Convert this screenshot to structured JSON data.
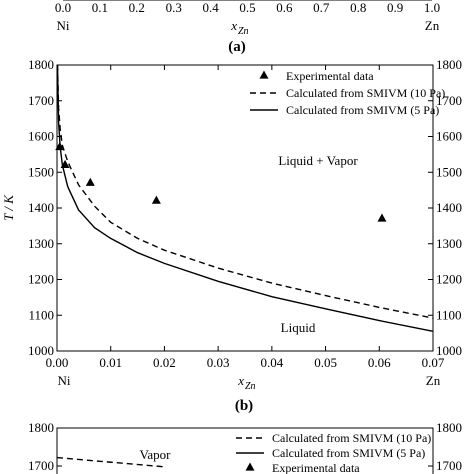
{
  "top_fragment": {
    "x_ticks": [
      "0.0",
      "0.1",
      "0.2",
      "0.3",
      "0.4",
      "0.5",
      "0.6",
      "0.7",
      "0.8",
      "0.9",
      "1.0"
    ],
    "left_end": "Ni",
    "axis_label": "x",
    "axis_label_sub": "Zn",
    "right_end": "Zn",
    "panel_label": "(a)"
  },
  "chart_data": [
    {
      "type": "line",
      "panel_label": "(b)",
      "xlabel": "x",
      "xlabel_sub": "Zn",
      "ylabel": "T / K",
      "xlim": [
        0.0,
        0.07
      ],
      "ylim": [
        1000,
        1800
      ],
      "x_ticks": [
        0.0,
        0.01,
        0.02,
        0.03,
        0.04,
        0.05,
        0.06,
        0.07
      ],
      "x_tick_labels": [
        "0.00",
        "0.01",
        "0.02",
        "0.03",
        "0.04",
        "0.05",
        "0.06",
        "0.07"
      ],
      "y_ticks": [
        1000,
        1100,
        1200,
        1300,
        1400,
        1500,
        1600,
        1700,
        1800
      ],
      "y_tick_labels": [
        "1000",
        "1100",
        "1200",
        "1300",
        "1400",
        "1500",
        "1600",
        "1700",
        "1800"
      ],
      "x_end_left": "Ni",
      "x_end_right": "Zn",
      "legend_position": "top-right",
      "annotations": [
        "Liquid + Vapor",
        "Liquid"
      ],
      "series": [
        {
          "name": "Experimental data",
          "style": "triangle-marker",
          "x": [
            0.0005,
            0.0015,
            0.0062,
            0.0185,
            0.0605
          ],
          "y": [
            1572,
            1522,
            1472,
            1422,
            1372
          ]
        },
        {
          "name": "Calculated from SMIVM (10 Pa)",
          "style": "dashed",
          "x": [
            0.0001,
            0.0003,
            0.0006,
            0.001,
            0.002,
            0.004,
            0.007,
            0.01,
            0.015,
            0.02,
            0.03,
            0.04,
            0.05,
            0.06,
            0.07
          ],
          "y": [
            1800,
            1680,
            1620,
            1575,
            1530,
            1465,
            1405,
            1360,
            1315,
            1282,
            1232,
            1190,
            1155,
            1122,
            1092
          ]
        },
        {
          "name": "Calculated from SMIVM (5 Pa)",
          "style": "solid",
          "x": [
            0.0001,
            0.0003,
            0.0006,
            0.001,
            0.002,
            0.004,
            0.007,
            0.01,
            0.015,
            0.02,
            0.03,
            0.04,
            0.05,
            0.06,
            0.07
          ],
          "y": [
            1800,
            1640,
            1570,
            1520,
            1460,
            1395,
            1345,
            1315,
            1275,
            1245,
            1195,
            1152,
            1118,
            1085,
            1055
          ]
        }
      ]
    },
    {
      "type": "line",
      "panel_label": "",
      "ylim": [
        1700,
        1800
      ],
      "y_tick_labels": [
        "1800",
        "1700"
      ],
      "legend_position": "top-right",
      "annotations": [
        "Vapor"
      ],
      "series": [
        {
          "name": "Calculated from SMIVM (10 Pa)",
          "style": "dashed",
          "x": [
            0.0,
            0.02
          ],
          "y": [
            1722,
            1698
          ]
        },
        {
          "name": "Calculated from SMIVM (5 Pa)",
          "style": "solid",
          "x": [],
          "y": []
        },
        {
          "name": "Experimental data",
          "style": "triangle-marker",
          "x": [],
          "y": []
        }
      ]
    }
  ]
}
